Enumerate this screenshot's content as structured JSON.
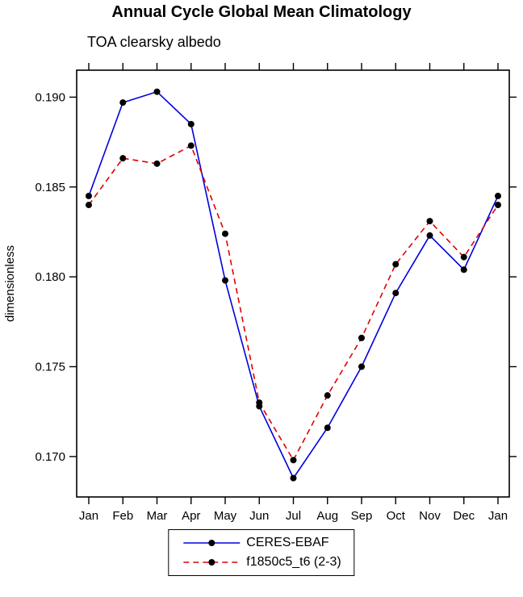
{
  "chart_data": {
    "type": "line",
    "title": "Annual Cycle Global Mean Climatology",
    "subtitle": "TOA clearsky albedo",
    "ylabel": "dimensionless",
    "xlabel": "",
    "categories": [
      "Jan",
      "Feb",
      "Mar",
      "Apr",
      "May",
      "Jun",
      "Jul",
      "Aug",
      "Sep",
      "Oct",
      "Nov",
      "Dec",
      "Jan"
    ],
    "yticks": [
      0.17,
      0.175,
      0.18,
      0.185,
      0.19
    ],
    "ytick_labels": [
      "0.170",
      "0.175",
      "0.180",
      "0.185",
      "0.190"
    ],
    "ylim": [
      0.16775,
      0.1915
    ],
    "grid": false,
    "legend_position": "bottom-center",
    "frame_color": "#000000",
    "series": [
      {
        "name": "CERES-EBAF",
        "color": "#0000e0",
        "line_style": "solid",
        "marker": "circle",
        "marker_color": "#000000",
        "values": [
          0.1845,
          0.1897,
          0.1903,
          0.1885,
          0.1798,
          0.1728,
          0.1688,
          0.1716,
          0.175,
          0.1791,
          0.1823,
          0.1804,
          0.1845
        ]
      },
      {
        "name": "f1850c5_t6 (2-3)",
        "color": "#e00000",
        "line_style": "dashed",
        "marker": "circle",
        "marker_color": "#000000",
        "values": [
          0.184,
          0.1866,
          0.1863,
          0.1873,
          0.1824,
          0.173,
          0.1698,
          0.1734,
          0.1766,
          0.1807,
          0.1831,
          0.1811,
          0.184
        ]
      }
    ]
  }
}
